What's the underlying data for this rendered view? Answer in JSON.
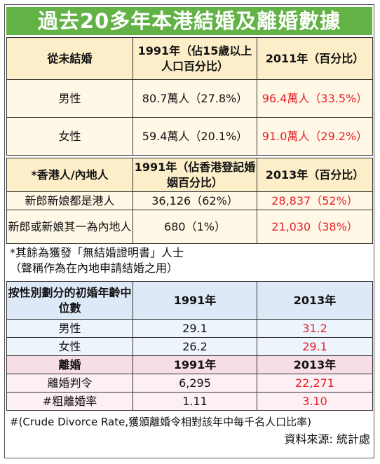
{
  "title": "過去20多年本港結婚及離婚數據",
  "section1": {
    "header": [
      "從未結婚",
      "1991年（佔15歲以上人口百分比）",
      "2011年（百分比）"
    ],
    "rows": [
      {
        "label": "男性",
        "v1991": "80.7萬人（27.8%）",
        "v2011": "96.4萬人（33.5%）"
      },
      {
        "label": "女性",
        "v1991": "59.4萬人（20.1%）",
        "v2011": "91.0萬人（29.2%）"
      }
    ]
  },
  "section2": {
    "header": [
      "*香港人/內地人",
      "1991年（佔香港登記婚姻百分比）",
      "2013年（百分比）"
    ],
    "rows": [
      {
        "label": "新郎新娘都是港人",
        "v1991": "36,126（62%）",
        "v2013": "28,837（52%）"
      },
      {
        "label": "新郎或新娘其一為內地人",
        "v1991": "680（1%）",
        "v2013": "21,030（38%）"
      }
    ],
    "note_line1": "*其餘為獲發「無結婚證明書」人士",
    "note_line2": "（聲稱作為在內地申請結婚之用）"
  },
  "section3": {
    "header": [
      "按性別劃分的初婚年齡中位數",
      "1991年",
      "2013年"
    ],
    "rows": [
      {
        "label": "男性",
        "v1991": "29.1",
        "v2013": "31.2"
      },
      {
        "label": "女性",
        "v1991": "26.2",
        "v2013": "29.1"
      }
    ]
  },
  "section4": {
    "header": [
      "離婚",
      "1991年",
      "2013年"
    ],
    "rows": [
      {
        "label": "離婚判令",
        "v1991": "6,295",
        "v2013": "22,271"
      },
      {
        "label": "#粗離婚率",
        "v1991": "1.11",
        "v2013": "3.10"
      }
    ],
    "footnote": "#(Crude Divorce Rate,獲頒離婚令相對該年中每千名人口比率)"
  },
  "source": "資料來源: 統計處",
  "colors": {
    "title_bg": "#62b245",
    "highlight_red": "#e6202a"
  }
}
